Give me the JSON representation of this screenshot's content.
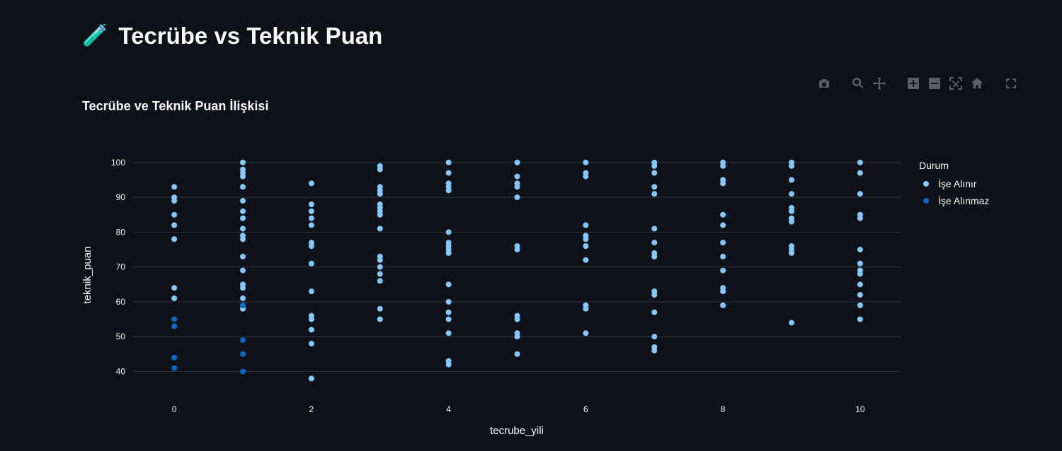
{
  "page": {
    "title": "Tecrübe vs Teknik Puan",
    "title_icon": "🧪",
    "title_icon_name": "test-tube-icon"
  },
  "modebar": {
    "buttons": [
      {
        "name": "camera-icon",
        "label": "Download plot as a png"
      },
      {
        "name": "zoom-icon",
        "label": "Zoom"
      },
      {
        "name": "pan-icon",
        "label": "Pan"
      },
      {
        "name": "zoom-in-icon",
        "label": "Zoom in"
      },
      {
        "name": "zoom-out-icon",
        "label": "Zoom out"
      },
      {
        "name": "autoscale-icon",
        "label": "Autoscale"
      },
      {
        "name": "home-icon",
        "label": "Reset axes"
      },
      {
        "name": "fullscreen-icon",
        "label": "Fullscreen"
      }
    ]
  },
  "chart_data": {
    "type": "scatter",
    "title": "Tecrübe ve Teknik Puan İlişkisi",
    "xlabel": "tecrube_yili",
    "ylabel": "teknik_puan",
    "xlim": [
      -0.6,
      10.6
    ],
    "ylim": [
      33,
      102
    ],
    "xticks": [
      0,
      2,
      4,
      6,
      8,
      10
    ],
    "yticks": [
      40,
      50,
      60,
      70,
      80,
      90,
      100
    ],
    "grid": true,
    "legend_title": "Durum",
    "legend_position": "right",
    "series": [
      {
        "name": "İşe Alınır",
        "color": "#83c9ff",
        "points": [
          [
            0,
            93
          ],
          [
            0,
            90
          ],
          [
            0,
            89
          ],
          [
            0,
            85
          ],
          [
            0,
            82
          ],
          [
            0,
            78
          ],
          [
            0,
            64
          ],
          [
            0,
            61
          ],
          [
            1,
            100
          ],
          [
            1,
            98
          ],
          [
            1,
            97
          ],
          [
            1,
            96
          ],
          [
            1,
            93
          ],
          [
            1,
            89
          ],
          [
            1,
            86
          ],
          [
            1,
            84
          ],
          [
            1,
            81
          ],
          [
            1,
            79
          ],
          [
            1,
            78
          ],
          [
            1,
            73
          ],
          [
            1,
            69
          ],
          [
            1,
            65
          ],
          [
            1,
            64
          ],
          [
            1,
            61
          ],
          [
            1,
            59
          ],
          [
            1,
            58
          ],
          [
            2,
            94
          ],
          [
            2,
            88
          ],
          [
            2,
            86
          ],
          [
            2,
            84
          ],
          [
            2,
            82
          ],
          [
            2,
            77
          ],
          [
            2,
            76
          ],
          [
            2,
            71
          ],
          [
            2,
            63
          ],
          [
            2,
            56
          ],
          [
            2,
            55
          ],
          [
            2,
            52
          ],
          [
            2,
            48
          ],
          [
            2,
            38
          ],
          [
            3,
            99
          ],
          [
            3,
            98
          ],
          [
            3,
            93
          ],
          [
            3,
            92
          ],
          [
            3,
            91
          ],
          [
            3,
            88
          ],
          [
            3,
            87
          ],
          [
            3,
            86
          ],
          [
            3,
            85
          ],
          [
            3,
            81
          ],
          [
            3,
            73
          ],
          [
            3,
            72
          ],
          [
            3,
            70
          ],
          [
            3,
            68
          ],
          [
            3,
            66
          ],
          [
            3,
            58
          ],
          [
            3,
            55
          ],
          [
            4,
            100
          ],
          [
            4,
            97
          ],
          [
            4,
            94
          ],
          [
            4,
            93
          ],
          [
            4,
            92
          ],
          [
            4,
            80
          ],
          [
            4,
            77
          ],
          [
            4,
            76
          ],
          [
            4,
            75
          ],
          [
            4,
            74
          ],
          [
            4,
            65
          ],
          [
            4,
            60
          ],
          [
            4,
            57
          ],
          [
            4,
            55
          ],
          [
            4,
            51
          ],
          [
            4,
            43
          ],
          [
            4,
            42
          ],
          [
            5,
            100
          ],
          [
            5,
            96
          ],
          [
            5,
            94
          ],
          [
            5,
            93
          ],
          [
            5,
            90
          ],
          [
            5,
            76
          ],
          [
            5,
            75
          ],
          [
            5,
            56
          ],
          [
            5,
            55
          ],
          [
            5,
            51
          ],
          [
            5,
            50
          ],
          [
            5,
            45
          ],
          [
            6,
            100
          ],
          [
            6,
            97
          ],
          [
            6,
            96
          ],
          [
            6,
            82
          ],
          [
            6,
            79
          ],
          [
            6,
            78
          ],
          [
            6,
            76
          ],
          [
            6,
            72
          ],
          [
            6,
            59
          ],
          [
            6,
            58
          ],
          [
            6,
            51
          ],
          [
            7,
            100
          ],
          [
            7,
            99
          ],
          [
            7,
            97
          ],
          [
            7,
            93
          ],
          [
            7,
            91
          ],
          [
            7,
            81
          ],
          [
            7,
            77
          ],
          [
            7,
            74
          ],
          [
            7,
            73
          ],
          [
            7,
            63
          ],
          [
            7,
            62
          ],
          [
            7,
            57
          ],
          [
            7,
            50
          ],
          [
            7,
            47
          ],
          [
            7,
            46
          ],
          [
            8,
            100
          ],
          [
            8,
            99
          ],
          [
            8,
            95
          ],
          [
            8,
            94
          ],
          [
            8,
            85
          ],
          [
            8,
            82
          ],
          [
            8,
            77
          ],
          [
            8,
            73
          ],
          [
            8,
            69
          ],
          [
            8,
            64
          ],
          [
            8,
            63
          ],
          [
            8,
            59
          ],
          [
            9,
            100
          ],
          [
            9,
            99
          ],
          [
            9,
            95
          ],
          [
            9,
            91
          ],
          [
            9,
            87
          ],
          [
            9,
            86
          ],
          [
            9,
            84
          ],
          [
            9,
            83
          ],
          [
            9,
            76
          ],
          [
            9,
            75
          ],
          [
            9,
            74
          ],
          [
            9,
            54
          ],
          [
            10,
            100
          ],
          [
            10,
            97
          ],
          [
            10,
            91
          ],
          [
            10,
            85
          ],
          [
            10,
            84
          ],
          [
            10,
            75
          ],
          [
            10,
            71
          ],
          [
            10,
            69
          ],
          [
            10,
            68
          ],
          [
            10,
            65
          ],
          [
            10,
            62
          ],
          [
            10,
            59
          ],
          [
            10,
            55
          ]
        ]
      },
      {
        "name": "İşe Alınmaz",
        "color": "#0068c9",
        "points": [
          [
            0,
            55
          ],
          [
            0,
            53
          ],
          [
            0,
            44
          ],
          [
            0,
            41
          ],
          [
            1,
            59
          ],
          [
            1,
            49
          ],
          [
            1,
            45
          ],
          [
            1,
            40
          ]
        ]
      }
    ]
  }
}
